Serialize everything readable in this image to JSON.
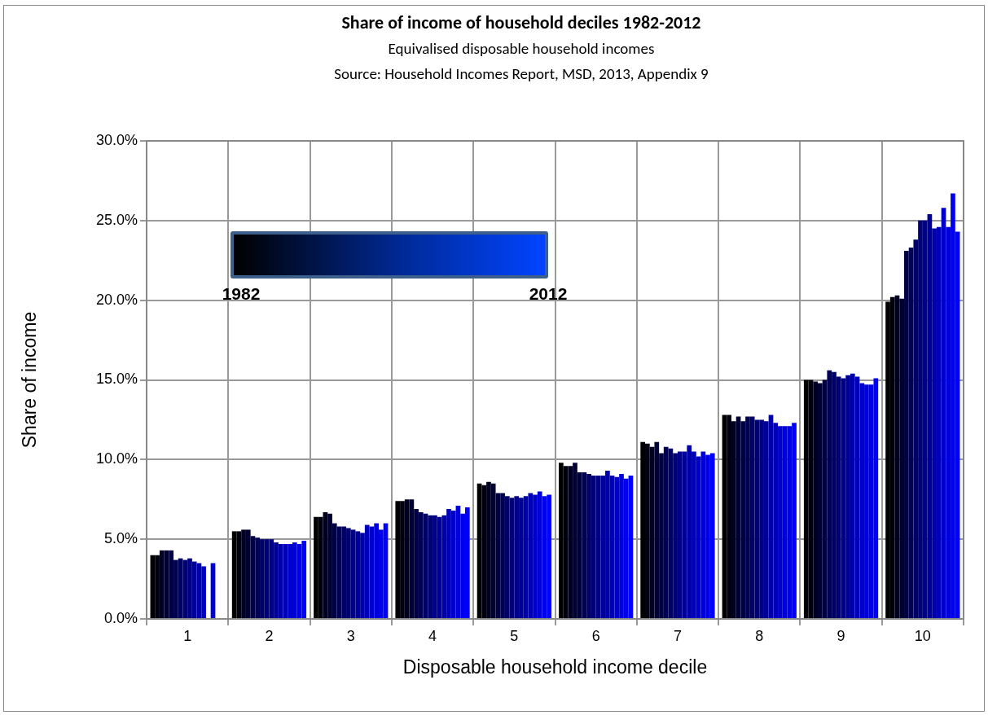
{
  "chart_data": {
    "type": "bar",
    "title": "Share of income of household deciles 1982-2012",
    "subtitle": "Equivalised disposable household incomes",
    "annotations": [
      "Source: Household Incomes Report, MSD, 2013, Appendix 9",
      "1982",
      "2012"
    ],
    "xlabel": "Disposable household income decile",
    "ylabel": "Share of income",
    "categories": [
      "1",
      "2",
      "3",
      "4",
      "5",
      "6",
      "7",
      "8",
      "9",
      "10"
    ],
    "series": [
      {
        "color": "#000000",
        "values": [
          4.0,
          5.5,
          6.4,
          7.4,
          8.5,
          9.8,
          11.1,
          12.8,
          15.0,
          19.9
        ]
      },
      {
        "color": "#000011",
        "values": [
          4.0,
          5.5,
          6.4,
          7.4,
          8.4,
          9.6,
          11.0,
          12.8,
          15.0,
          20.2
        ]
      },
      {
        "color": "#000022",
        "values": [
          4.3,
          5.6,
          6.7,
          7.5,
          8.6,
          9.6,
          10.8,
          12.4,
          14.9,
          20.3
        ]
      },
      {
        "color": "#000033",
        "values": [
          4.3,
          5.6,
          6.6,
          7.5,
          8.5,
          9.8,
          11.1,
          12.7,
          14.8,
          20.1
        ]
      },
      {
        "color": "#000044",
        "values": [
          4.3,
          5.2,
          6.0,
          6.9,
          7.9,
          9.2,
          10.4,
          12.4,
          15.0,
          23.1
        ]
      },
      {
        "color": "#000055",
        "values": [
          3.7,
          5.1,
          5.8,
          6.7,
          7.9,
          9.2,
          10.8,
          12.7,
          15.6,
          23.3
        ]
      },
      {
        "color": "#000066",
        "values": [
          3.8,
          5.0,
          5.8,
          6.6,
          7.7,
          9.1,
          10.7,
          12.7,
          15.5,
          23.8
        ]
      },
      {
        "color": "#000077",
        "values": [
          3.7,
          5.0,
          5.7,
          6.5,
          7.6,
          9.0,
          10.4,
          12.5,
          15.2,
          25.0
        ]
      },
      {
        "color": "#000088",
        "values": [
          3.8,
          5.0,
          5.6,
          6.5,
          7.7,
          9.0,
          10.5,
          12.5,
          15.1,
          25.0
        ]
      },
      {
        "color": "#000099",
        "values": [
          3.6,
          4.8,
          5.5,
          6.4,
          7.6,
          9.0,
          10.5,
          12.4,
          15.3,
          25.4
        ]
      },
      {
        "color": "#0000aa",
        "values": [
          3.5,
          4.7,
          5.4,
          6.5,
          7.7,
          9.3,
          10.9,
          12.8,
          15.4,
          24.5
        ]
      },
      {
        "color": "#0000bb",
        "values": [
          3.3,
          4.7,
          5.9,
          6.9,
          7.9,
          9.0,
          10.5,
          12.3,
          15.2,
          24.6
        ]
      },
      {
        "color": "#0000cc",
        "values": [
          null,
          4.7,
          5.8,
          6.8,
          7.8,
          8.9,
          10.2,
          12.1,
          14.8,
          25.8
        ]
      },
      {
        "color": "#0000dd",
        "values": [
          3.5,
          4.8,
          6.0,
          7.1,
          8.0,
          9.1,
          10.5,
          12.1,
          14.7,
          24.6
        ]
      },
      {
        "color": "#0000ee",
        "values": [
          null,
          4.7,
          5.6,
          6.6,
          7.7,
          8.8,
          10.3,
          12.1,
          14.7,
          26.7
        ]
      },
      {
        "color": "#0000ff",
        "values": [
          null,
          4.9,
          6.0,
          7.0,
          7.8,
          9.0,
          10.4,
          12.3,
          15.1,
          24.3
        ]
      }
    ],
    "ylim": [
      0,
      30
    ],
    "yticks": [
      {
        "value": 0,
        "label": "0.0%"
      },
      {
        "value": 5,
        "label": "5.0%"
      },
      {
        "value": 10,
        "label": "10.0%"
      },
      {
        "value": 15,
        "label": "15.0%"
      },
      {
        "value": 20,
        "label": "20.0%"
      },
      {
        "value": 25,
        "label": "25.0%"
      },
      {
        "value": 30,
        "label": "30.0%"
      }
    ],
    "grid": true,
    "legend": false
  }
}
